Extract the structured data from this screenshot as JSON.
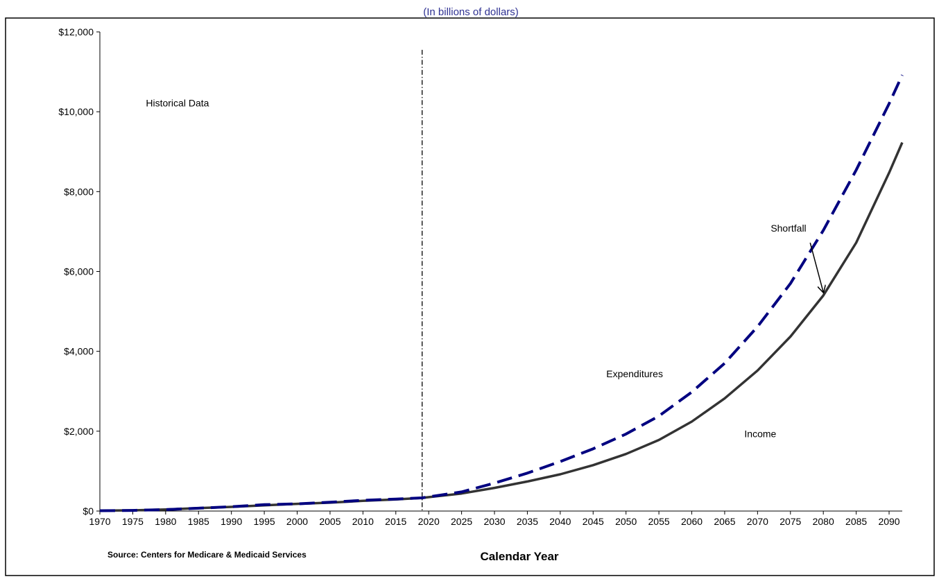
{
  "chart_data": {
    "type": "line",
    "subtitle": "(In billions of dollars)",
    "xlabel": "Calendar Year",
    "ylabel": "",
    "source": "Source:  Centers for Medicare & Medicaid Services",
    "xlim": [
      1970,
      2092
    ],
    "ylim": [
      0,
      12000
    ],
    "x_ticks": [
      "1970",
      "1975",
      "1980",
      "1985",
      "1990",
      "1995",
      "2000",
      "2005",
      "2010",
      "2015",
      "2020",
      "2025",
      "2030",
      "2035",
      "2040",
      "2045",
      "2050",
      "2055",
      "2060",
      "2065",
      "2070",
      "2075",
      "2080",
      "2085",
      "2090"
    ],
    "y_ticks": [
      "$0",
      "$2,000",
      "$4,000",
      "$6,000",
      "$8,000",
      "$10,000",
      "$12,000"
    ],
    "y_tick_values": [
      0,
      2000,
      4000,
      6000,
      8000,
      10000,
      12000
    ],
    "historical_divider_year": 2019,
    "grid": false,
    "series": [
      {
        "name": "Expenditures",
        "style": "dashed",
        "color": "#000080",
        "x": [
          1970,
          1975,
          1980,
          1985,
          1990,
          1995,
          2000,
          2005,
          2010,
          2015,
          2019,
          2025,
          2030,
          2035,
          2040,
          2045,
          2050,
          2055,
          2060,
          2065,
          2070,
          2075,
          2080,
          2085,
          2090,
          2092
        ],
        "values": [
          8,
          16,
          36,
          72,
          110,
          160,
          180,
          220,
          270,
          300,
          330,
          480,
          700,
          950,
          1240,
          1560,
          1930,
          2380,
          2980,
          3700,
          4620,
          5700,
          7030,
          8540,
          10200,
          10920
        ]
      },
      {
        "name": "Income",
        "style": "solid",
        "color": "#333333",
        "x": [
          1970,
          1975,
          1980,
          1985,
          1990,
          1995,
          2000,
          2005,
          2010,
          2015,
          2019,
          2025,
          2030,
          2035,
          2040,
          2045,
          2050,
          2055,
          2060,
          2065,
          2070,
          2075,
          2080,
          2085,
          2090,
          2092
        ],
        "values": [
          10,
          18,
          38,
          75,
          105,
          145,
          180,
          210,
          255,
          290,
          330,
          440,
          580,
          740,
          920,
          1150,
          1430,
          1780,
          2240,
          2820,
          3520,
          4370,
          5400,
          6720,
          8470,
          9230
        ]
      }
    ],
    "annotations": [
      {
        "text": "Historical Data",
        "x": 1977,
        "y": 10130
      },
      {
        "text": "Expenditures",
        "x": 2047,
        "y": 3350
      },
      {
        "text": "Income",
        "x": 2068,
        "y": 1850
      },
      {
        "text": "Shortfall",
        "x": 2072,
        "y": 7000
      }
    ],
    "shortfall_arrow": {
      "from": [
        2078,
        6720
      ],
      "to": [
        2080,
        5480
      ]
    }
  }
}
